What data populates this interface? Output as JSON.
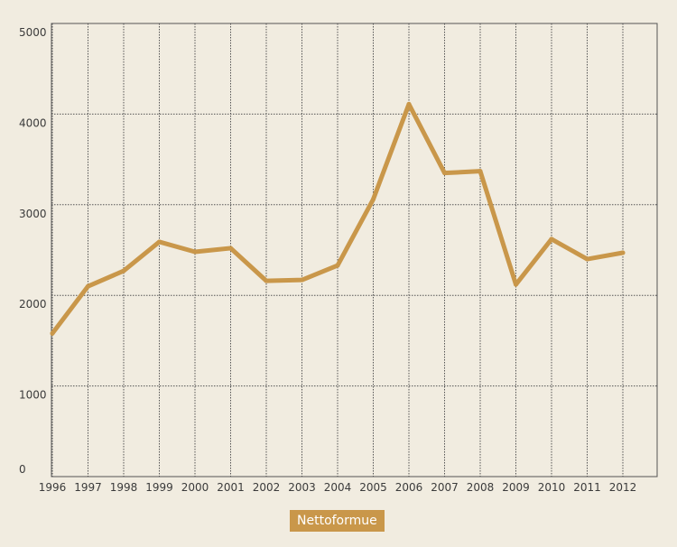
{
  "chart_data": {
    "type": "line",
    "title": "",
    "xlabel": "",
    "ylabel": "",
    "ylim": [
      0,
      5000
    ],
    "grid": true,
    "legend_position": "bottom-center",
    "y_ticks": [
      "0",
      "1000",
      "2000",
      "3000",
      "4000",
      "5000"
    ],
    "categories": [
      "1996",
      "1997",
      "1998",
      "1999",
      "2000",
      "2001",
      "2002",
      "2003",
      "2004",
      "2005",
      "2006",
      "2007",
      "2008",
      "2009",
      "2010",
      "2011",
      "2012"
    ],
    "series": [
      {
        "name": "Nettoformue",
        "color": "#c9974a",
        "values": [
          1580,
          2100,
          2270,
          2590,
          2480,
          2520,
          2160,
          2170,
          2330,
          3060,
          4110,
          3350,
          3370,
          2120,
          2620,
          2400,
          2470
        ]
      }
    ]
  }
}
